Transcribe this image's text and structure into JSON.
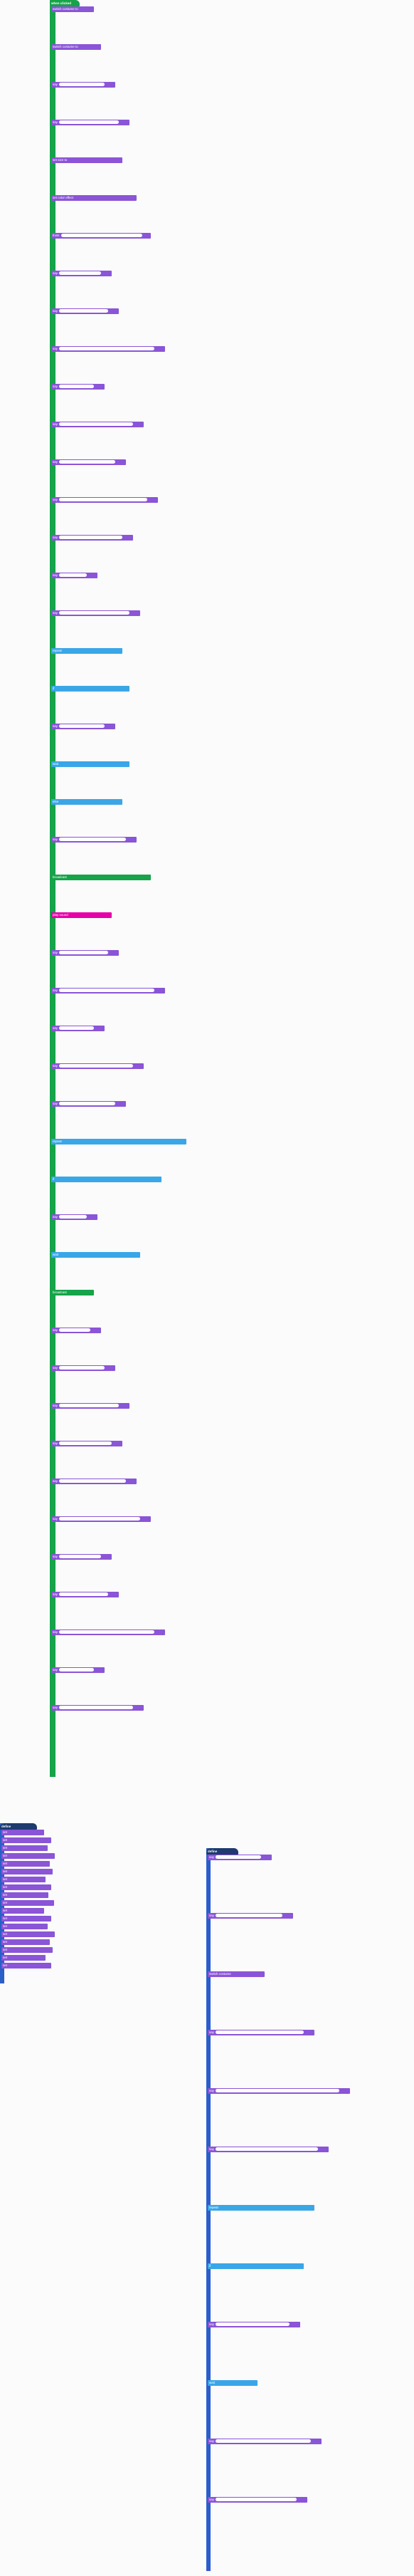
{
  "canvas": {
    "background": "#fbfbfb"
  },
  "colors": {
    "looks": "#8a55d7",
    "events": "#16a34a",
    "control": "#3aa6e8",
    "operators": "#59c059",
    "variables": "#ff8c1a",
    "magenta": "#e600a8",
    "dark": "#4c5a66",
    "navy": "#1e3a6e"
  },
  "scripts": {
    "main": {
      "hat_label": "when clicked",
      "blocks": [
        "switch costume to",
        "switch costume to",
        "say",
        "say",
        "set size to",
        "set color effect",
        "think",
        "say",
        "say",
        "say",
        "say",
        "say",
        "say",
        "say",
        "say",
        "say",
        "say",
        "repeat",
        "if",
        "say",
        "wait",
        "else",
        "say",
        "broadcast",
        "play sound",
        "say",
        "say",
        "say",
        "say",
        "say",
        "repeat",
        "if",
        "say",
        "wait",
        "broadcast",
        "say",
        "say",
        "say",
        "say",
        "say",
        "say",
        "say",
        "say",
        "say",
        "say",
        "say"
      ]
    },
    "left": {
      "hat_label": "define",
      "blocks": [
        "set",
        "set",
        "set",
        "set",
        "set",
        "set",
        "set",
        "set",
        "set",
        "set",
        "set",
        "set",
        "set",
        "set",
        "set",
        "set",
        "set",
        "set"
      ]
    },
    "right": {
      "hat_label": "define",
      "blocks": [
        "say",
        "say",
        "switch costume",
        "say",
        "say",
        "say",
        "repeat",
        "if",
        "say",
        "wait",
        "say",
        "say"
      ]
    }
  }
}
